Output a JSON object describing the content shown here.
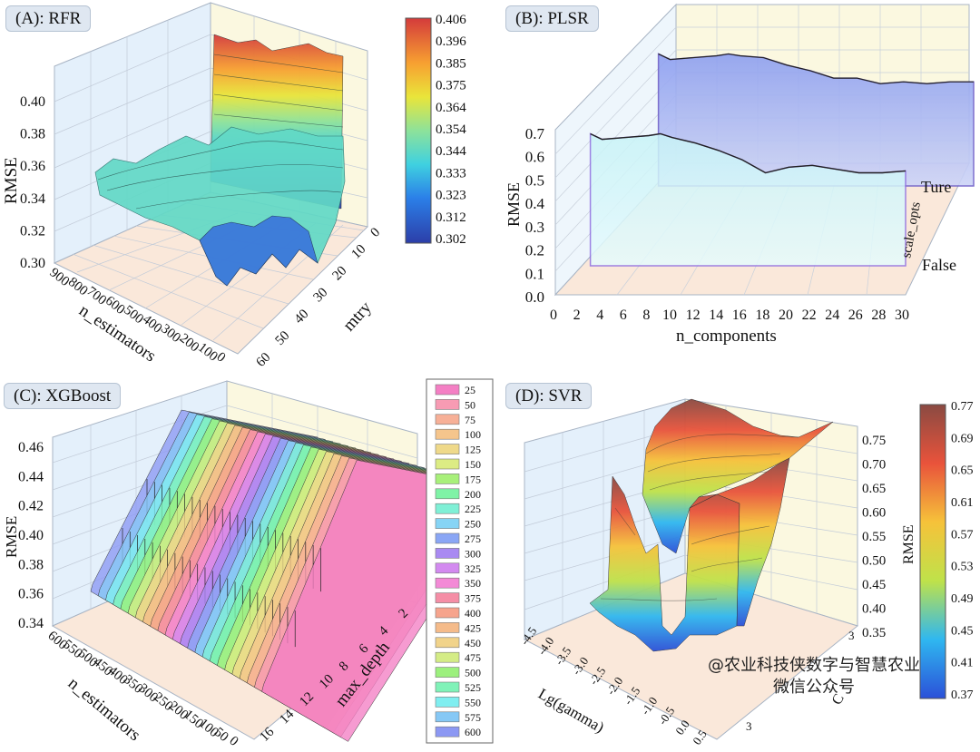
{
  "watermark": {
    "line1": "@农业科技侠数字与智慧农业",
    "line2": "微信公众号"
  },
  "chart_data": [
    {
      "panel": "A",
      "type": "surface3d",
      "title": "(A): RFR",
      "xlabel": "n_estimators",
      "ylabel": "mtry",
      "zlabel": "RMSE",
      "x_ticks": [
        "900",
        "800",
        "700",
        "600",
        "500",
        "400",
        "300",
        "200",
        "100",
        "0"
      ],
      "y_ticks": [
        "0",
        "10",
        "20",
        "30",
        "40",
        "50",
        "60"
      ],
      "z_ticks": [
        "0.30",
        "0.32",
        "0.34",
        "0.36",
        "0.38",
        "0.40"
      ],
      "zlim": [
        0.3,
        0.406
      ],
      "colorbar": {
        "ticks": [
          "0.406",
          "0.396",
          "0.385",
          "0.375",
          "0.364",
          "0.354",
          "0.344",
          "0.333",
          "0.323",
          "0.312",
          "0.302"
        ]
      }
    },
    {
      "panel": "B",
      "type": "area3d",
      "title": "(B): PLSR",
      "xlabel": "n_components",
      "ylabel": "scale_opts",
      "zlabel": "RMSE",
      "x_ticks": [
        "0",
        "2",
        "4",
        "6",
        "8",
        "10",
        "12",
        "14",
        "16",
        "18",
        "20",
        "22",
        "24",
        "26",
        "28",
        "30"
      ],
      "y_ticks": [
        "Ture",
        "False"
      ],
      "z_ticks": [
        "0.0",
        "0.1",
        "0.2",
        "0.3",
        "0.4",
        "0.5",
        "0.6",
        "0.7"
      ],
      "series": [
        {
          "name": "Ture",
          "x": [
            3,
            4,
            6,
            8,
            9,
            10,
            12,
            14,
            16,
            18,
            20,
            22,
            24,
            26,
            28,
            30
          ],
          "values": [
            0.71,
            0.68,
            0.69,
            0.7,
            0.71,
            0.7,
            0.69,
            0.65,
            0.62,
            0.58,
            0.58,
            0.55,
            0.56,
            0.55,
            0.56,
            0.56
          ]
        },
        {
          "name": "False",
          "x": [
            3,
            4,
            6,
            8,
            9,
            10,
            12,
            14,
            16,
            18,
            20,
            22,
            24,
            26,
            28,
            30
          ],
          "values": [
            0.71,
            0.68,
            0.69,
            0.7,
            0.71,
            0.69,
            0.66,
            0.62,
            0.57,
            0.5,
            0.53,
            0.54,
            0.52,
            0.5,
            0.5,
            0.51
          ]
        }
      ]
    },
    {
      "panel": "C",
      "type": "ribbon3d",
      "title": "(C): XGBoost",
      "xlabel": "n_estimators",
      "ylabel": "max_depth",
      "zlabel": "RMSE",
      "x_ticks": [
        "600",
        "550",
        "500",
        "450",
        "400",
        "350",
        "300",
        "250",
        "200",
        "150",
        "100",
        "50",
        "0"
      ],
      "y_ticks": [
        "2",
        "4",
        "6",
        "8",
        "10",
        "12",
        "14",
        "16"
      ],
      "z_ticks": [
        "0.34",
        "0.36",
        "0.38",
        "0.40",
        "0.42",
        "0.44",
        "0.46"
      ],
      "legend": [
        {
          "label": "25",
          "color": "#f47fc4"
        },
        {
          "label": "50",
          "color": "#f79bb3"
        },
        {
          "label": "75",
          "color": "#f7b097"
        },
        {
          "label": "100",
          "color": "#f5c58c"
        },
        {
          "label": "125",
          "color": "#efd98a"
        },
        {
          "label": "150",
          "color": "#dcec84"
        },
        {
          "label": "175",
          "color": "#a8f07a"
        },
        {
          "label": "200",
          "color": "#7ff3a6"
        },
        {
          "label": "225",
          "color": "#7ff0d6"
        },
        {
          "label": "250",
          "color": "#86d4f5"
        },
        {
          "label": "275",
          "color": "#8aa6f5"
        },
        {
          "label": "300",
          "color": "#a98af2"
        },
        {
          "label": "325",
          "color": "#d38af0"
        },
        {
          "label": "350",
          "color": "#f38ad6"
        },
        {
          "label": "375",
          "color": "#f58ea6"
        },
        {
          "label": "400",
          "color": "#f6a48d"
        },
        {
          "label": "425",
          "color": "#f5bb8a"
        },
        {
          "label": "450",
          "color": "#f1d38a"
        },
        {
          "label": "475",
          "color": "#d4ec86"
        },
        {
          "label": "500",
          "color": "#9cf07d"
        },
        {
          "label": "525",
          "color": "#80f2b8"
        },
        {
          "label": "550",
          "color": "#80eef0"
        },
        {
          "label": "575",
          "color": "#86c8f5"
        },
        {
          "label": "600",
          "color": "#8c98f3"
        }
      ]
    },
    {
      "panel": "D",
      "type": "surface3d",
      "title": "(D): SVR",
      "xlabel": "Lg(gamma)",
      "ylabel": "C",
      "zlabel": "RMSE",
      "x_ticks": [
        "-4.5",
        "-4.0",
        "-3.5",
        "-3.0",
        "-2.5",
        "-2.0",
        "-1.5",
        "-1.0",
        "-0.5",
        "0.0",
        "0.5"
      ],
      "y_ticks": [
        "3",
        "3"
      ],
      "z_ticks": [
        "0.35",
        "0.40",
        "0.45",
        "0.50",
        "0.55",
        "0.60",
        "0.65",
        "0.70",
        "0.75"
      ],
      "zlim": [
        0.37,
        0.77
      ],
      "colorbar": {
        "ticks": [
          "0.77",
          "0.69",
          "0.65",
          "0.61",
          "0.57",
          "0.53",
          "0.49",
          "0.45",
          "0.41",
          "0.37"
        ]
      }
    }
  ]
}
